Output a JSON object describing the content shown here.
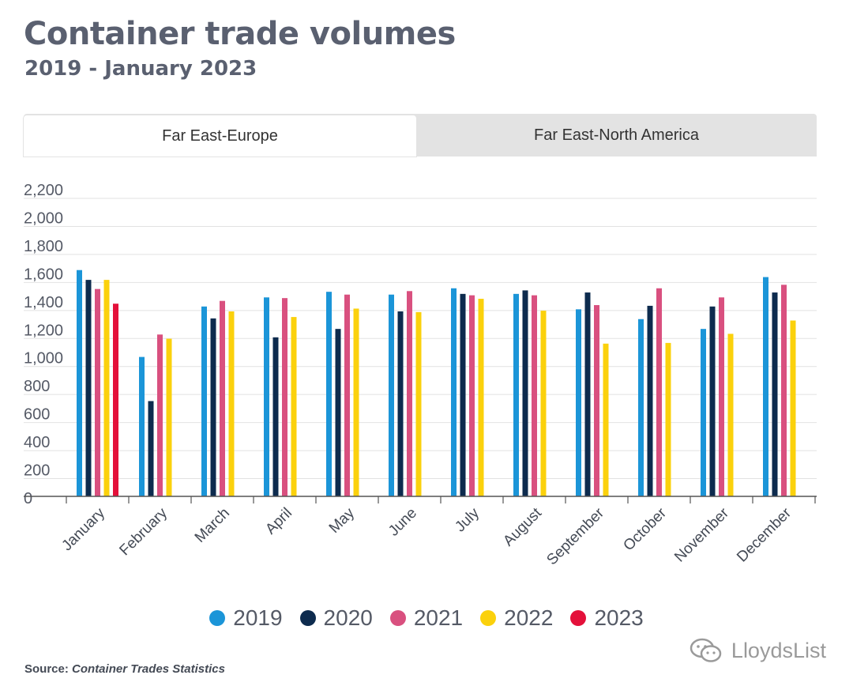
{
  "title": "Container trade volumes",
  "subtitle": "2019 - January 2023",
  "tabs": [
    {
      "label": "Far East-Europe",
      "active": true
    },
    {
      "label": "Far East-North America",
      "active": false
    }
  ],
  "source": {
    "prefix": "Source:",
    "name": "Container Trades Statistics"
  },
  "watermark": "LloydsList",
  "colors": {
    "2019": "#1b95d8",
    "2020": "#0d2b4e",
    "2021": "#d9507f",
    "2022": "#fbd10c",
    "2023": "#e4103a",
    "grid": "#e2e2e2",
    "axis": "#555555"
  },
  "chart_data": {
    "type": "bar",
    "title": "",
    "xlabel": "",
    "ylabel": "",
    "ylim": [
      0,
      2200
    ],
    "yticks": [
      "0",
      "200",
      "400",
      "600",
      "800",
      "1,000",
      "1,200",
      "1,400",
      "1,600",
      "1,800",
      "2,000",
      "2,200"
    ],
    "grid": true,
    "legend_position": "bottom",
    "categories": [
      "January",
      "February",
      "March",
      "April",
      "May",
      "June",
      "July",
      "August",
      "September",
      "October",
      "November",
      "December"
    ],
    "series": [
      {
        "name": "2019",
        "values": [
          1615,
          995,
          1355,
          1420,
          1460,
          1440,
          1485,
          1445,
          1335,
          1265,
          1195,
          1565
        ]
      },
      {
        "name": "2020",
        "values": [
          1545,
          680,
          1270,
          1135,
          1195,
          1320,
          1445,
          1470,
          1455,
          1360,
          1355,
          1455
        ]
      },
      {
        "name": "2021",
        "values": [
          1480,
          1155,
          1395,
          1415,
          1440,
          1465,
          1435,
          1435,
          1365,
          1485,
          1420,
          1510
        ]
      },
      {
        "name": "2022",
        "values": [
          1545,
          1125,
          1320,
          1280,
          1340,
          1315,
          1410,
          1325,
          1090,
          1095,
          1160,
          1255
        ]
      },
      {
        "name": "2023",
        "values": [
          1375,
          null,
          null,
          null,
          null,
          null,
          null,
          null,
          null,
          null,
          null,
          null
        ]
      }
    ]
  }
}
